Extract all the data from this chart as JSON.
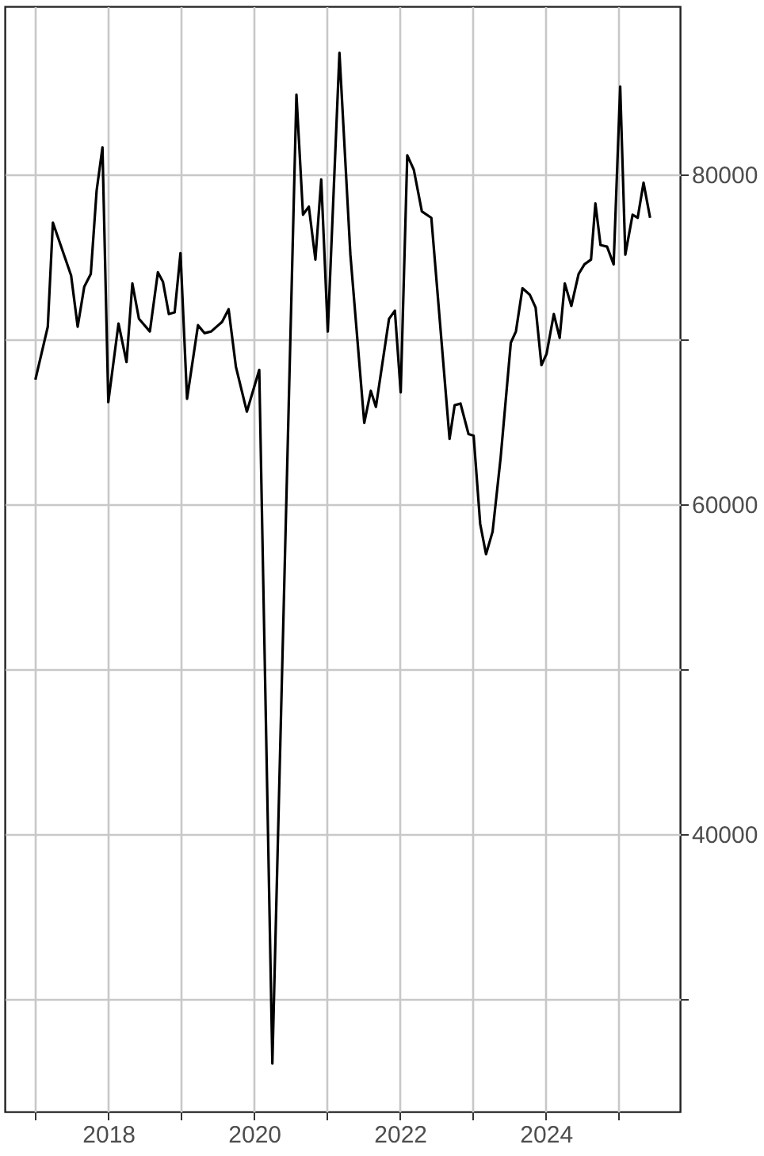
{
  "chart_data": {
    "type": "line",
    "x": [
      2017.0,
      2017.17,
      2017.24,
      2017.49,
      2017.58,
      2017.67,
      2017.76,
      2017.84,
      2017.92,
      2018.0,
      2018.14,
      2018.25,
      2018.33,
      2018.42,
      2018.57,
      2018.68,
      2018.75,
      2018.83,
      2018.91,
      2018.99,
      2019.08,
      2019.23,
      2019.32,
      2019.41,
      2019.56,
      2019.65,
      2019.75,
      2019.9,
      2020.07,
      2020.25,
      2020.58,
      2020.67,
      2020.75,
      2020.84,
      2020.92,
      2021.01,
      2021.17,
      2021.32,
      2021.51,
      2021.6,
      2021.67,
      2021.85,
      2021.93,
      2022.01,
      2022.1,
      2022.19,
      2022.3,
      2022.43,
      2022.68,
      2022.75,
      2022.83,
      2022.94,
      2023.01,
      2023.1,
      2023.18,
      2023.27,
      2023.38,
      2023.52,
      2023.59,
      2023.68,
      2023.78,
      2023.86,
      2023.94,
      2024.01,
      2024.11,
      2024.19,
      2024.26,
      2024.35,
      2024.45,
      2024.53,
      2024.62,
      2024.68,
      2024.75,
      2024.84,
      2024.93,
      2025.02,
      2025.09,
      2025.19,
      2025.26,
      2025.34,
      2025.43
    ],
    "series": [
      {
        "color": "#000000",
        "values": [
          67570,
          70780,
          77090,
          73880,
          70780,
          73200,
          73980,
          79030,
          81650,
          66210,
          70970,
          68640,
          73400,
          71260,
          70490,
          74080,
          73500,
          71550,
          71650,
          75240,
          66410,
          70870,
          70390,
          70490,
          71070,
          71840,
          68350,
          65630,
          68160,
          26120,
          84850,
          77570,
          78060,
          74850,
          79710,
          70490,
          87380,
          75150,
          64950,
          66890,
          65920,
          71260,
          71750,
          66800,
          81170,
          80290,
          77770,
          77380,
          63980,
          66020,
          66120,
          64270,
          64170,
          58830,
          56990,
          58350,
          62820,
          69810,
          70490,
          73110,
          72720,
          71940,
          68450,
          69130,
          71550,
          70100,
          73400,
          72040,
          73980,
          74560,
          74850,
          78250,
          75730,
          75630,
          74560,
          85340,
          75150,
          77570,
          77380,
          79510,
          77380
        ]
      }
    ],
    "xlim": [
      2016.58,
      2025.84
    ],
    "xticks": [
      {
        "value": 2017,
        "label": null
      },
      2018,
      {
        "value": 2019,
        "label": null
      },
      2020,
      {
        "value": 2021,
        "label": null
      },
      2022,
      {
        "value": 2023,
        "label": null
      },
      2024,
      {
        "value": 2025,
        "label": null
      }
    ],
    "ylim": [
      23200,
      90200
    ],
    "yticks": [
      {
        "value": 30000,
        "label": null
      },
      40000,
      {
        "value": 50000,
        "label": null
      },
      60000,
      {
        "value": 70000,
        "label": null
      },
      80000
    ],
    "grid": true
  }
}
